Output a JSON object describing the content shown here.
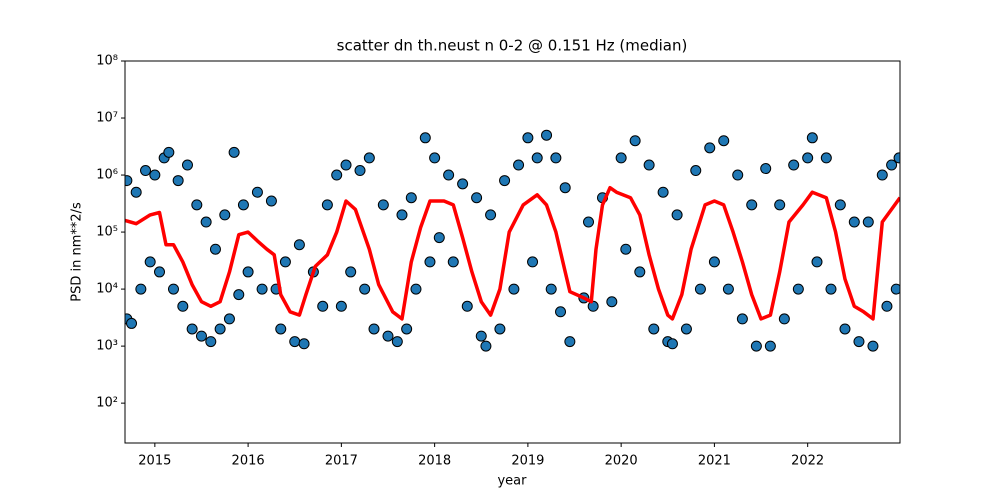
{
  "chart_data": {
    "type": "scatter",
    "title": "scatter dn th.neust n 0-2 @ 0.151 Hz (median)",
    "xlabel": "year",
    "ylabel": "PSD in nm**2/s",
    "xlim": [
      2014.68,
      2022.99
    ],
    "xticks": [
      2015,
      2016,
      2017,
      2018,
      2019,
      2020,
      2021,
      2022
    ],
    "ylim": [
      20,
      100000000
    ],
    "log_y": true,
    "yticks": [
      {
        "value": 100,
        "label": "10²"
      },
      {
        "value": 1000,
        "label": "10³"
      },
      {
        "value": 10000,
        "label": "10⁴"
      },
      {
        "value": 100000,
        "label": "10⁵"
      },
      {
        "value": 1000000,
        "label": "10⁶"
      },
      {
        "value": 10000000,
        "label": "10⁷"
      },
      {
        "value": 100000000,
        "label": "10⁸"
      }
    ],
    "scatter": {
      "color": "#1f77b4",
      "x": [
        2014.7,
        2014.7,
        2014.75,
        2014.8,
        2014.85,
        2014.9,
        2014.95,
        2015.0,
        2015.05,
        2015.1,
        2015.15,
        2015.2,
        2015.25,
        2015.3,
        2015.35,
        2015.4,
        2015.45,
        2015.5,
        2015.55,
        2015.6,
        2015.65,
        2015.7,
        2015.75,
        2015.8,
        2015.85,
        2015.9,
        2015.95,
        2016.0,
        2016.1,
        2016.15,
        2016.25,
        2016.3,
        2016.35,
        2016.4,
        2016.5,
        2016.55,
        2016.6,
        2016.7,
        2016.8,
        2016.85,
        2016.95,
        2017.0,
        2017.05,
        2017.1,
        2017.2,
        2017.25,
        2017.3,
        2017.35,
        2017.45,
        2017.5,
        2017.6,
        2017.65,
        2017.7,
        2017.75,
        2017.8,
        2017.9,
        2017.95,
        2018.0,
        2018.05,
        2018.15,
        2018.2,
        2018.3,
        2018.35,
        2018.45,
        2018.5,
        2018.55,
        2018.6,
        2018.7,
        2018.75,
        2018.85,
        2018.9,
        2019.0,
        2019.05,
        2019.1,
        2019.2,
        2019.25,
        2019.3,
        2019.35,
        2019.4,
        2019.45,
        2019.6,
        2019.65,
        2019.7,
        2019.8,
        2019.9,
        2020.0,
        2020.05,
        2020.15,
        2020.2,
        2020.3,
        2020.35,
        2020.45,
        2020.5,
        2020.55,
        2020.6,
        2020.7,
        2020.8,
        2020.85,
        2020.95,
        2021.0,
        2021.1,
        2021.15,
        2021.25,
        2021.3,
        2021.4,
        2021.45,
        2021.55,
        2021.6,
        2021.7,
        2021.75,
        2021.85,
        2021.9,
        2022.0,
        2022.05,
        2022.1,
        2022.2,
        2022.25,
        2022.35,
        2022.4,
        2022.5,
        2022.55,
        2022.65,
        2022.7,
        2022.8,
        2022.85,
        2022.9,
        2022.95,
        2022.98
      ],
      "values": [
        800000,
        3000,
        2500,
        500000,
        10000,
        1200000,
        30000,
        1000000,
        20000,
        2000000,
        2500000,
        10000,
        800000,
        5000,
        1500000,
        2000,
        300000,
        1500,
        150000,
        1200,
        50000,
        2000,
        200000,
        3000,
        2500000,
        8000,
        300000,
        20000,
        500000,
        10000,
        350000,
        10000,
        2000,
        30000,
        1200,
        60000,
        1100,
        20000,
        5000,
        300000,
        1000000,
        5000,
        1500000,
        20000,
        1200000,
        10000,
        2000000,
        2000,
        300000,
        1500,
        1200,
        200000,
        2000,
        400000,
        10000,
        4500000,
        30000,
        2000000,
        80000,
        1000000,
        30000,
        700000,
        5000,
        400000,
        1500,
        1000,
        200000,
        2000,
        800000,
        10000,
        1500000,
        4500000,
        30000,
        2000000,
        5000000,
        10000,
        2000000,
        4000,
        600000,
        1200,
        7000,
        150000,
        5000,
        400000,
        6000,
        2000000,
        50000,
        4000000,
        20000,
        1500000,
        2000,
        500000,
        1200,
        1100,
        200000,
        2000,
        1200000,
        10000,
        3000000,
        30000,
        4000000,
        10000,
        1000000,
        3000,
        300000,
        1000,
        1300000,
        1000,
        300000,
        3000,
        1500000,
        10000,
        2000000,
        4500000,
        30000,
        2000000,
        10000,
        300000,
        2000,
        150000,
        1200,
        150000,
        1000,
        1000000,
        5000,
        1500000,
        10000,
        2000000
      ]
    },
    "median": {
      "color": "#ff0000",
      "x": [
        2014.68,
        2014.8,
        2014.95,
        2015.05,
        2015.12,
        2015.2,
        2015.3,
        2015.4,
        2015.5,
        2015.6,
        2015.7,
        2015.8,
        2015.9,
        2016.0,
        2016.1,
        2016.2,
        2016.28,
        2016.35,
        2016.45,
        2016.55,
        2016.62,
        2016.72,
        2016.85,
        2016.95,
        2017.05,
        2017.15,
        2017.3,
        2017.4,
        2017.55,
        2017.65,
        2017.75,
        2017.85,
        2017.95,
        2018.1,
        2018.2,
        2018.3,
        2018.4,
        2018.5,
        2018.6,
        2018.7,
        2018.8,
        2018.95,
        2019.1,
        2019.2,
        2019.3,
        2019.4,
        2019.45,
        2019.6,
        2019.68,
        2019.73,
        2019.8,
        2019.88,
        2019.95,
        2020.1,
        2020.2,
        2020.3,
        2020.4,
        2020.5,
        2020.55,
        2020.65,
        2020.75,
        2020.9,
        2021.0,
        2021.1,
        2021.2,
        2021.3,
        2021.4,
        2021.5,
        2021.6,
        2021.7,
        2021.8,
        2021.95,
        2022.05,
        2022.2,
        2022.3,
        2022.4,
        2022.5,
        2022.6,
        2022.7,
        2022.8,
        2022.99
      ],
      "values": [
        160000,
        140000,
        200000,
        220000,
        60000,
        60000,
        30000,
        12000,
        6000,
        5000,
        6000,
        20000,
        90000,
        100000,
        70000,
        50000,
        40000,
        8000,
        4000,
        3500,
        8000,
        25000,
        40000,
        100000,
        350000,
        250000,
        50000,
        12000,
        4000,
        3000,
        30000,
        120000,
        350000,
        350000,
        300000,
        80000,
        20000,
        6000,
        3500,
        10000,
        100000,
        300000,
        450000,
        300000,
        100000,
        20000,
        9000,
        7000,
        6000,
        50000,
        300000,
        600000,
        500000,
        400000,
        200000,
        40000,
        10000,
        3500,
        3000,
        8000,
        50000,
        300000,
        350000,
        300000,
        100000,
        30000,
        8000,
        3000,
        3500,
        20000,
        150000,
        300000,
        500000,
        400000,
        100000,
        15000,
        5000,
        4000,
        3000,
        150000,
        400000
      ]
    }
  }
}
